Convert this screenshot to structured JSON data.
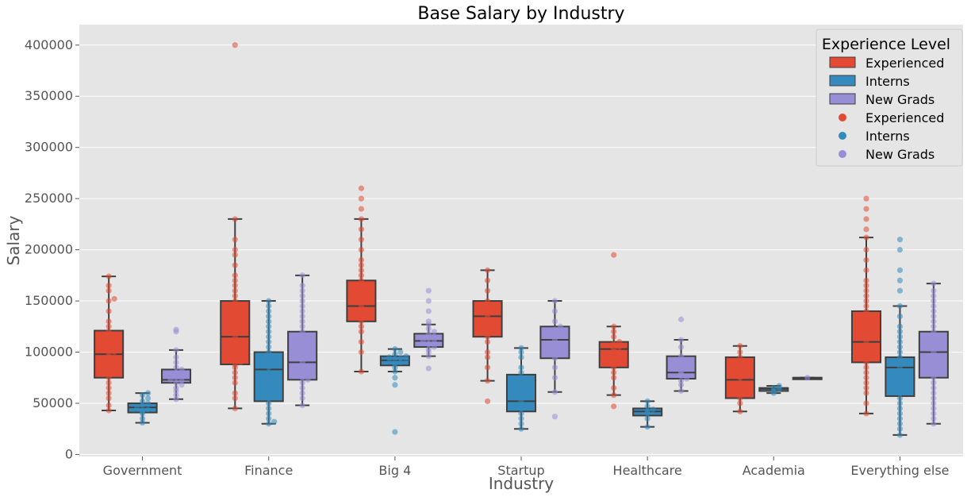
{
  "chart_data": {
    "type": "box",
    "title": "Base Salary by Industry",
    "xlabel": "Industry",
    "ylabel": "Salary",
    "ylim": [
      -2000,
      420000
    ],
    "yticks": [
      0,
      50000,
      100000,
      150000,
      200000,
      250000,
      300000,
      350000,
      400000
    ],
    "grid": true,
    "legend_position": "top-right",
    "legend_title": "Experience Level",
    "categories": [
      "Government",
      "Finance",
      "Big 4",
      "Startup",
      "Healthcare",
      "Academia",
      "Everything else"
    ],
    "series": [
      {
        "name": "Experienced",
        "box_color": "#E24A33",
        "point_color": "#E24A33",
        "boxes": [
          {
            "min": 43000,
            "q1": 75000,
            "median": 98000,
            "q3": 121000,
            "max": 174000,
            "outliers": []
          },
          {
            "min": 45000,
            "q1": 88000,
            "median": 115000,
            "q3": 150000,
            "max": 230000,
            "outliers": [
              400000
            ]
          },
          {
            "min": 81000,
            "q1": 130000,
            "median": 145000,
            "q3": 170000,
            "max": 230000,
            "outliers": [
              250000,
              260000
            ]
          },
          {
            "min": 72000,
            "q1": 115000,
            "median": 135000,
            "q3": 150000,
            "max": 180000,
            "outliers": [
              52000
            ]
          },
          {
            "min": 58000,
            "q1": 85000,
            "median": 103000,
            "q3": 110000,
            "max": 125000,
            "outliers": [
              195000,
              47000
            ]
          },
          {
            "min": 42000,
            "q1": 55000,
            "median": 73000,
            "q3": 95000,
            "max": 106000,
            "outliers": []
          },
          {
            "min": 40000,
            "q1": 90000,
            "median": 110000,
            "q3": 140000,
            "max": 212000,
            "outliers": [
              220000,
              230000,
              240000,
              250000
            ]
          }
        ],
        "points": [
          [
            43000,
            48000,
            55000,
            60000,
            65000,
            70000,
            75000,
            80000,
            85000,
            90000,
            95000,
            98000,
            100000,
            105000,
            110000,
            115000,
            120000,
            125000,
            130000,
            140000,
            150000,
            152000,
            160000,
            165000,
            174000
          ],
          [
            45000,
            55000,
            60000,
            70000,
            75000,
            80000,
            85000,
            88000,
            90000,
            95000,
            100000,
            105000,
            110000,
            115000,
            120000,
            125000,
            130000,
            135000,
            140000,
            145000,
            150000,
            155000,
            160000,
            165000,
            170000,
            175000,
            185000,
            195000,
            200000,
            210000,
            230000,
            400000
          ],
          [
            81000,
            100000,
            110000,
            120000,
            125000,
            130000,
            135000,
            140000,
            145000,
            150000,
            155000,
            160000,
            165000,
            170000,
            175000,
            180000,
            185000,
            190000,
            200000,
            210000,
            220000,
            230000,
            240000,
            250000,
            260000
          ],
          [
            52000,
            72000,
            85000,
            95000,
            100000,
            110000,
            115000,
            120000,
            125000,
            130000,
            135000,
            140000,
            145000,
            150000,
            160000,
            170000,
            180000
          ],
          [
            47000,
            58000,
            65000,
            75000,
            80000,
            85000,
            90000,
            95000,
            100000,
            103000,
            105000,
            108000,
            110000,
            115000,
            120000,
            125000,
            195000
          ],
          [
            42000,
            50000,
            55000,
            60000,
            65000,
            70000,
            75000,
            80000,
            85000,
            90000,
            95000,
            100000,
            106000
          ],
          [
            40000,
            50000,
            60000,
            65000,
            70000,
            75000,
            80000,
            85000,
            90000,
            95000,
            100000,
            105000,
            110000,
            115000,
            120000,
            125000,
            130000,
            135000,
            140000,
            145000,
            150000,
            155000,
            160000,
            165000,
            170000,
            180000,
            190000,
            200000,
            212000,
            220000,
            230000,
            240000,
            250000
          ]
        ]
      },
      {
        "name": "Interns",
        "box_color": "#348ABD",
        "point_color": "#348ABD",
        "boxes": [
          {
            "min": 31000,
            "q1": 41000,
            "median": 46000,
            "q3": 50000,
            "max": 60000,
            "outliers": []
          },
          {
            "min": 30000,
            "q1": 52000,
            "median": 83000,
            "q3": 100000,
            "max": 150000,
            "outliers": []
          },
          {
            "min": 81000,
            "q1": 87000,
            "median": 92000,
            "q3": 96000,
            "max": 103000,
            "outliers": [
              75000,
              68000,
              22000
            ]
          },
          {
            "min": 25000,
            "q1": 42000,
            "median": 52000,
            "q3": 78000,
            "max": 104000,
            "outliers": []
          },
          {
            "min": 27000,
            "q1": 38000,
            "median": 42000,
            "q3": 45000,
            "max": 52000,
            "outliers": []
          },
          {
            "min": 60000,
            "q1": 62000,
            "median": 64000,
            "q3": 65000,
            "max": 67000,
            "outliers": []
          },
          {
            "min": 19000,
            "q1": 57000,
            "median": 85000,
            "q3": 95000,
            "max": 145000,
            "outliers": [
              160000,
              170000,
              180000,
              200000,
              210000
            ]
          }
        ],
        "points": [
          [
            31000,
            35000,
            40000,
            42000,
            44000,
            46000,
            48000,
            50000,
            52000,
            55000,
            58000,
            60000
          ],
          [
            30000,
            32000,
            35000,
            40000,
            45000,
            50000,
            55000,
            60000,
            65000,
            70000,
            75000,
            80000,
            85000,
            90000,
            95000,
            100000,
            105000,
            110000,
            115000,
            120000,
            125000,
            130000,
            135000,
            140000,
            145000,
            150000
          ],
          [
            22000,
            68000,
            75000,
            81000,
            85000,
            88000,
            90000,
            91000,
            92000,
            93000,
            94000,
            95000,
            96000,
            98000,
            100000,
            103000
          ],
          [
            25000,
            30000,
            35000,
            40000,
            45000,
            52000,
            60000,
            70000,
            80000,
            85000,
            95000,
            100000,
            104000
          ],
          [
            27000,
            35000,
            40000,
            42000,
            44000,
            47000,
            52000
          ],
          [
            60000,
            62000,
            64000,
            65000,
            67000
          ],
          [
            19000,
            25000,
            30000,
            35000,
            40000,
            45000,
            50000,
            55000,
            60000,
            65000,
            70000,
            75000,
            80000,
            85000,
            90000,
            95000,
            100000,
            105000,
            110000,
            115000,
            120000,
            125000,
            135000,
            145000,
            160000,
            170000,
            180000,
            200000,
            210000
          ]
        ]
      },
      {
        "name": "New Grads",
        "box_color": "#988ED5",
        "point_color": "#988ED5",
        "boxes": [
          {
            "min": 54000,
            "q1": 70000,
            "median": 73000,
            "q3": 83000,
            "max": 102000,
            "outliers": [
              120000,
              122000
            ]
          },
          {
            "min": 48000,
            "q1": 73000,
            "median": 90000,
            "q3": 120000,
            "max": 175000,
            "outliers": []
          },
          {
            "min": 96000,
            "q1": 105000,
            "median": 111000,
            "q3": 118000,
            "max": 127000,
            "outliers": [
              84000,
              140000,
              150000,
              160000
            ]
          },
          {
            "min": 61000,
            "q1": 94000,
            "median": 112000,
            "q3": 125000,
            "max": 150000,
            "outliers": [
              37000
            ]
          },
          {
            "min": 62000,
            "q1": 74000,
            "median": 80000,
            "q3": 96000,
            "max": 112000,
            "outliers": [
              132000
            ]
          },
          {
            "min": 75000,
            "q1": 75000,
            "median": 75000,
            "q3": 75000,
            "max": 75000,
            "outliers": []
          },
          {
            "min": 30000,
            "q1": 75000,
            "median": 100000,
            "q3": 120000,
            "max": 167000,
            "outliers": []
          }
        ],
        "points": [
          [
            54000,
            58000,
            62000,
            65000,
            68000,
            70000,
            72000,
            73000,
            75000,
            78000,
            80000,
            83000,
            85000,
            90000,
            95000,
            102000,
            120000,
            122000
          ],
          [
            48000,
            55000,
            60000,
            65000,
            70000,
            73000,
            75000,
            80000,
            85000,
            90000,
            95000,
            100000,
            105000,
            110000,
            115000,
            120000,
            125000,
            130000,
            135000,
            140000,
            145000,
            150000,
            155000,
            160000,
            165000,
            175000
          ],
          [
            84000,
            96000,
            100000,
            103000,
            105000,
            108000,
            110000,
            111000,
            113000,
            115000,
            118000,
            120000,
            123000,
            127000,
            130000,
            140000,
            150000,
            160000
          ],
          [
            37000,
            61000,
            75000,
            85000,
            94000,
            100000,
            105000,
            112000,
            118000,
            122000,
            125000,
            130000,
            140000,
            150000
          ],
          [
            62000,
            68000,
            72000,
            74000,
            78000,
            80000,
            85000,
            90000,
            96000,
            105000,
            112000,
            132000
          ],
          [
            75000
          ],
          [
            30000,
            35000,
            40000,
            45000,
            50000,
            55000,
            60000,
            65000,
            70000,
            75000,
            80000,
            85000,
            90000,
            95000,
            100000,
            105000,
            110000,
            115000,
            120000,
            125000,
            130000,
            135000,
            140000,
            145000,
            150000,
            155000,
            160000,
            167000
          ]
        ]
      }
    ]
  },
  "legend": {
    "title": "Experience Level",
    "items": [
      {
        "label": "Experienced",
        "kind": "patch",
        "color": "#E24A33"
      },
      {
        "label": "Interns",
        "kind": "patch",
        "color": "#348ABD"
      },
      {
        "label": "New Grads",
        "kind": "patch",
        "color": "#988ED5"
      },
      {
        "label": "Experienced",
        "kind": "dot",
        "color": "#E24A33"
      },
      {
        "label": "Interns",
        "kind": "dot",
        "color": "#348ABD"
      },
      {
        "label": "New Grads",
        "kind": "dot",
        "color": "#988ED5"
      }
    ]
  },
  "colors": {
    "plot_background": "#E5E5E5",
    "grid": "#FFFFFF",
    "box_edge": "#3F3F3F"
  }
}
